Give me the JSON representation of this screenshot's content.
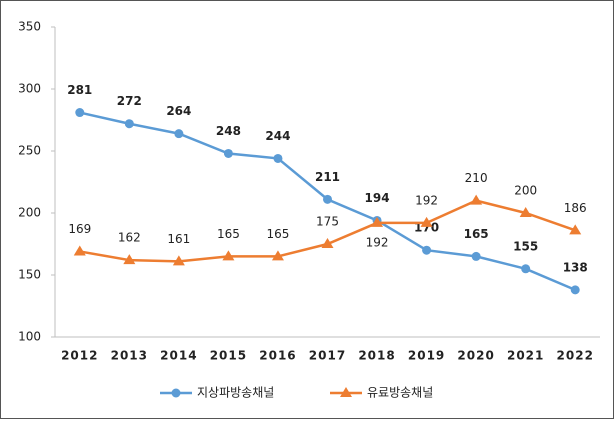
{
  "chart_data": {
    "type": "line",
    "categories": [
      "2012",
      "2013",
      "2014",
      "2015",
      "2016",
      "2017",
      "2018",
      "2019",
      "2020",
      "2021",
      "2022"
    ],
    "series": [
      {
        "name": "지상파방송채널",
        "color": "#5b9bd5",
        "marker": "circle",
        "values": [
          281,
          272,
          264,
          248,
          244,
          211,
          194,
          170,
          165,
          155,
          138
        ]
      },
      {
        "name": "유료방송채널",
        "color": "#ed7d31",
        "marker": "triangle",
        "values": [
          169,
          162,
          161,
          165,
          165,
          175,
          192,
          192,
          210,
          200,
          186
        ]
      }
    ],
    "ylim": [
      100,
      350
    ],
    "yticks": [
      100,
      150,
      200,
      250,
      300,
      350
    ],
    "grid": false,
    "legend": "bottom"
  }
}
